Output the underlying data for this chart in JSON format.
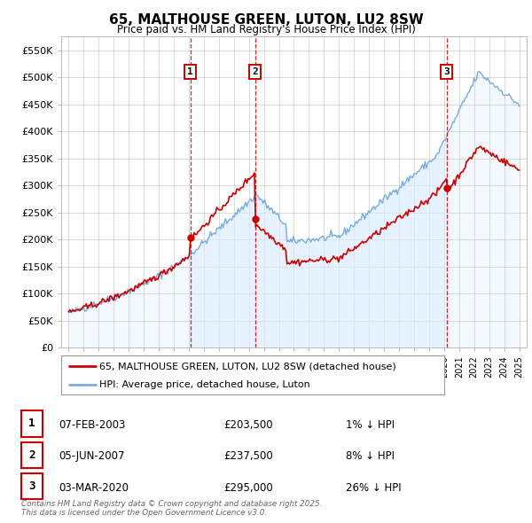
{
  "title": "65, MALTHOUSE GREEN, LUTON, LU2 8SW",
  "subtitle": "Price paid vs. HM Land Registry's House Price Index (HPI)",
  "ylabel_ticks": [
    "£0",
    "£50K",
    "£100K",
    "£150K",
    "£200K",
    "£250K",
    "£300K",
    "£350K",
    "£400K",
    "£450K",
    "£500K",
    "£550K"
  ],
  "ytick_values": [
    0,
    50000,
    100000,
    150000,
    200000,
    250000,
    300000,
    350000,
    400000,
    450000,
    500000,
    550000
  ],
  "ylim": [
    0,
    575000
  ],
  "xlim_start": 1994.5,
  "xlim_end": 2025.5,
  "sales": [
    {
      "num": 1,
      "date": "07-FEB-2003",
      "year": 2003.1,
      "price": 203500,
      "hpi_diff": "1% ↓ HPI"
    },
    {
      "num": 2,
      "date": "05-JUN-2007",
      "year": 2007.43,
      "price": 237500,
      "hpi_diff": "8% ↓ HPI"
    },
    {
      "num": 3,
      "date": "03-MAR-2020",
      "year": 2020.17,
      "price": 295000,
      "hpi_diff": "26% ↓ HPI"
    }
  ],
  "legend_property": "65, MALTHOUSE GREEN, LUTON, LU2 8SW (detached house)",
  "legend_hpi": "HPI: Average price, detached house, Luton",
  "footer": "Contains HM Land Registry data © Crown copyright and database right 2025.\nThis data is licensed under the Open Government Licence v3.0.",
  "property_color": "#cc0000",
  "hpi_color": "#7aace0",
  "hpi_fill_color": "#ddeeff",
  "background_color": "#ffffff"
}
